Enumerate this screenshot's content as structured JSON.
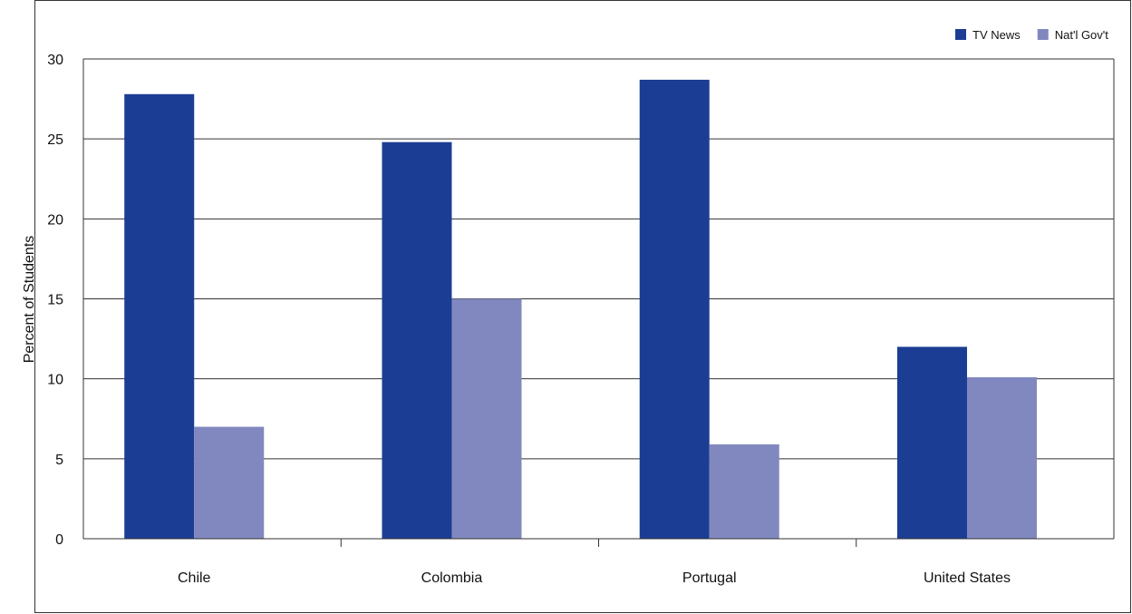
{
  "chart_data": {
    "type": "bar",
    "categories": [
      "Chile",
      "Colombia",
      "Portugal",
      "United States"
    ],
    "series": [
      {
        "name": "TV News",
        "values": [
          27.8,
          24.8,
          28.7,
          12.0
        ],
        "color": "#1b3d93"
      },
      {
        "name": "Nat'l Gov't",
        "values": [
          7.0,
          15.0,
          5.9,
          10.1
        ],
        "color": "#8188bf"
      }
    ],
    "ylabel": "Percent of Students",
    "ylim": [
      0,
      30
    ],
    "yticks": [
      0,
      5,
      10,
      15,
      20,
      25,
      30
    ],
    "grid": true,
    "legend_position": "top-right"
  }
}
